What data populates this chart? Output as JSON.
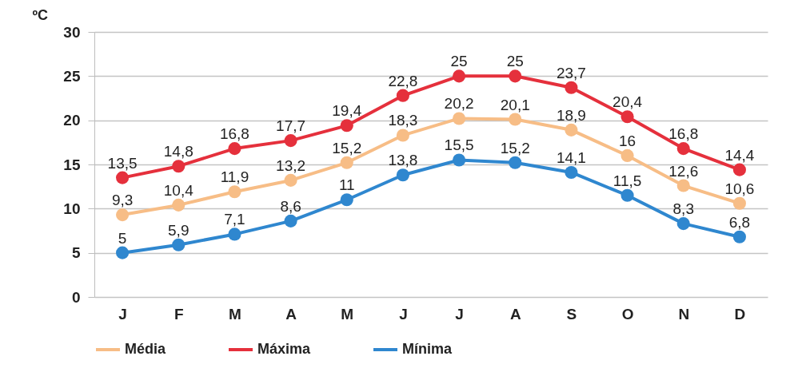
{
  "chart_data": {
    "type": "line",
    "ylabel": "ºC",
    "categories": [
      "J",
      "F",
      "M",
      "A",
      "M",
      "J",
      "J",
      "A",
      "S",
      "O",
      "N",
      "D"
    ],
    "series": [
      {
        "name": "Média",
        "color": "#f7bd86",
        "values": [
          9.3,
          10.4,
          11.9,
          13.2,
          15.2,
          18.3,
          20.2,
          20.1,
          18.9,
          16,
          12.6,
          10.6
        ],
        "value_labels": [
          "9,3",
          "10,4",
          "11,9",
          "13,2",
          "15,2",
          "18,3",
          "20,2",
          "20,1",
          "18,9",
          "16",
          "12,6",
          "10,6"
        ]
      },
      {
        "name": "Máxima",
        "color": "#e5303c",
        "values": [
          13.5,
          14.8,
          16.8,
          17.7,
          19.4,
          22.8,
          25,
          25,
          23.7,
          20.4,
          16.8,
          14.4
        ],
        "value_labels": [
          "13,5",
          "14,8",
          "16,8",
          "17,7",
          "19,4",
          "22,8",
          "25",
          "25",
          "23,7",
          "20,4",
          "16,8",
          "14,4"
        ]
      },
      {
        "name": "Mínima",
        "color": "#2f87cf",
        "values": [
          5,
          5.9,
          7.1,
          8.6,
          11,
          13.8,
          15.5,
          15.2,
          14.1,
          11.5,
          8.3,
          6.8
        ],
        "value_labels": [
          "5",
          "5,9",
          "7,1",
          "8,6",
          "11",
          "13,8",
          "15,5",
          "15,2",
          "14,1",
          "11,5",
          "8,3",
          "6,8"
        ]
      }
    ],
    "ylim": [
      0,
      30
    ],
    "yticks": [
      0,
      5,
      10,
      15,
      20,
      25,
      30
    ],
    "grid": "y",
    "legend": "bottom",
    "marker": "circle",
    "line_style": "solid"
  }
}
